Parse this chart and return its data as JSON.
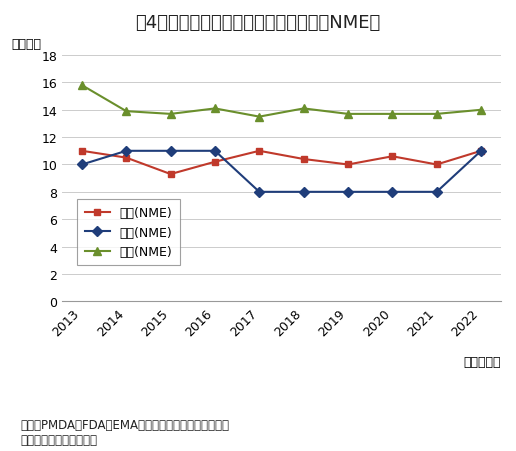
{
  "title": "围4　審査期間（中央値）の年次推移（NME）",
  "ylabel": "（月数）",
  "xlabel": "（承認年）",
  "years": [
    2013,
    2014,
    2015,
    2016,
    2017,
    2018,
    2019,
    2020,
    2021,
    2022
  ],
  "japan": [
    11.0,
    10.5,
    9.3,
    10.2,
    11.0,
    10.4,
    10.0,
    10.6,
    10.0,
    11.0
  ],
  "usa": [
    10.0,
    11.0,
    11.0,
    11.0,
    8.0,
    8.0,
    8.0,
    8.0,
    8.0,
    11.0
  ],
  "eu": [
    15.8,
    13.9,
    13.7,
    14.1,
    13.5,
    14.1,
    13.7,
    13.7,
    13.7,
    14.0
  ],
  "japan_color": "#c0392b",
  "usa_color": "#1f3d7a",
  "eu_color": "#6a8f2c",
  "japan_label": "日本(NME)",
  "usa_label": "米国(NME)",
  "eu_label": "欧州(NME)",
  "ylim": [
    0,
    18
  ],
  "yticks": [
    0,
    2,
    4,
    6,
    8,
    10,
    12,
    14,
    16,
    18
  ],
  "background_color": "#ffffff",
  "grid_color": "#cccccc",
  "title_fontsize": 13,
  "label_fontsize": 9,
  "tick_fontsize": 9,
  "legend_fontsize": 9,
  "source_text": "出所：PMDA、FDA、EMAの各公開情報をもとに医薬産\n　業政策研究所にて作成"
}
